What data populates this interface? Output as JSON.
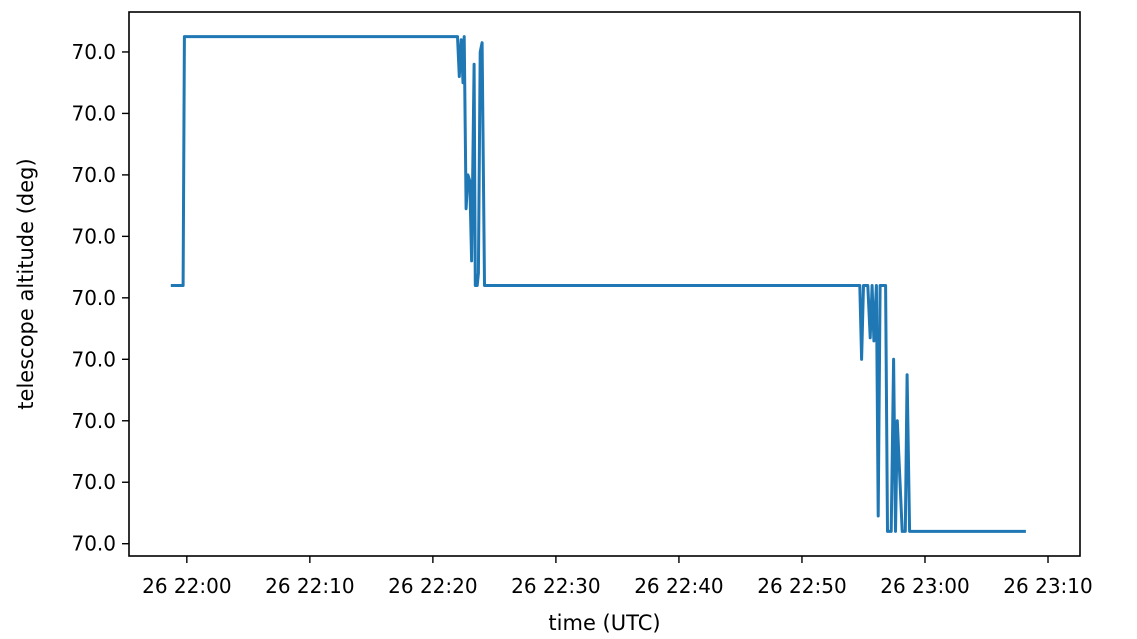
{
  "chart_data": {
    "type": "line",
    "title": "",
    "xlabel": "time (UTC)",
    "ylabel": "telescope altitude (deg)",
    "x_tick_labels": [
      "26 22:00",
      "26 22:10",
      "26 22:20",
      "26 22:30",
      "26 22:40",
      "26 22:50",
      "26 23:00",
      "26 23:10"
    ],
    "x_tick_minutes": [
      0,
      10,
      20,
      30,
      40,
      50,
      60,
      70
    ],
    "y_tick_labels": [
      "70.0",
      "70.0",
      "70.0",
      "70.0",
      "70.0",
      "70.0",
      "70.0",
      "70.0",
      "70.0"
    ],
    "y_tick_values": [
      8,
      7,
      6,
      5,
      4,
      3,
      2,
      1,
      0
    ],
    "x_unit_note": "minutes after 26 22:00 UTC",
    "xlim": [
      -4.7,
      72.6
    ],
    "ylim": [
      -0.2,
      8.65
    ],
    "grid": false,
    "series": [
      {
        "name": "",
        "color": "#1f77b4",
        "points": [
          [
            -1.3,
            4.2
          ],
          [
            -0.3,
            4.2
          ],
          [
            -0.2,
            8.25
          ],
          [
            22.0,
            8.25
          ],
          [
            22.15,
            7.6
          ],
          [
            22.3,
            8.2
          ],
          [
            22.45,
            7.5
          ],
          [
            22.55,
            8.25
          ],
          [
            22.7,
            5.45
          ],
          [
            22.85,
            6.0
          ],
          [
            23.0,
            5.9
          ],
          [
            23.15,
            4.6
          ],
          [
            23.35,
            7.8
          ],
          [
            23.45,
            4.2
          ],
          [
            23.6,
            4.2
          ],
          [
            23.7,
            4.4
          ],
          [
            23.85,
            8.0
          ],
          [
            24.0,
            8.15
          ],
          [
            24.2,
            4.2
          ],
          [
            54.7,
            4.2
          ],
          [
            54.85,
            3.0
          ],
          [
            55.0,
            4.2
          ],
          [
            55.35,
            4.2
          ],
          [
            55.55,
            3.35
          ],
          [
            55.7,
            4.2
          ],
          [
            55.85,
            3.3
          ],
          [
            56.05,
            4.2
          ],
          [
            56.2,
            0.45
          ],
          [
            56.35,
            4.2
          ],
          [
            56.8,
            4.2
          ],
          [
            56.95,
            0.2
          ],
          [
            57.25,
            0.2
          ],
          [
            57.45,
            3.0
          ],
          [
            57.6,
            0.2
          ],
          [
            57.75,
            2.0
          ],
          [
            58.15,
            0.2
          ],
          [
            58.4,
            0.2
          ],
          [
            58.55,
            2.75
          ],
          [
            58.75,
            0.2
          ],
          [
            68.2,
            0.2
          ]
        ]
      }
    ]
  }
}
